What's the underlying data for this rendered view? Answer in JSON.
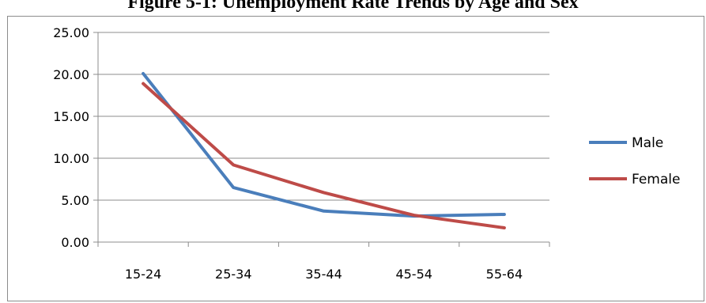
{
  "chart_data": {
    "type": "line",
    "title": "Figure 5-1: Unemployment Rate Trends by Age and Sex",
    "categories": [
      "15-24",
      "25-34",
      "35-44",
      "45-54",
      "55-64"
    ],
    "series": [
      {
        "name": "Male",
        "color": "#4a7ebb",
        "values": [
          20.1,
          6.5,
          3.7,
          3.1,
          3.3
        ]
      },
      {
        "name": "Female",
        "color": "#be4b48",
        "values": [
          18.9,
          9.2,
          5.9,
          3.2,
          1.7
        ]
      }
    ],
    "ylim": [
      0,
      25
    ],
    "yticks": [
      "0.00",
      "5.00",
      "10.00",
      "15.00",
      "20.00",
      "25.00"
    ],
    "xlabel": "",
    "ylabel": "",
    "grid": true,
    "legend_position": "right"
  }
}
